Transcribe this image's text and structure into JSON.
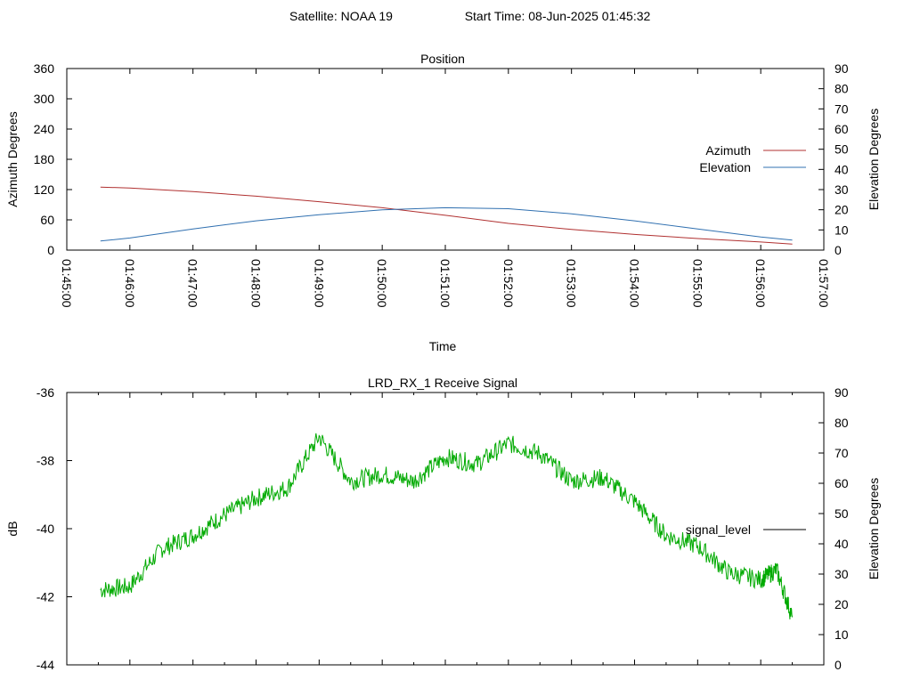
{
  "header": {
    "satellite": "Satellite: NOAA 19",
    "start_time": "Start Time: 08-Jun-2025 01:45:32"
  },
  "chart_data": [
    {
      "type": "line",
      "title": "Position",
      "xlabel": "Time",
      "ylabel": "Azimuth Degrees",
      "y2label": "Elevation Degrees",
      "xlim": [
        "01:45:00",
        "01:57:00"
      ],
      "x_ticks": [
        "01:45:00",
        "01:46:00",
        "01:47:00",
        "01:48:00",
        "01:49:00",
        "01:50:00",
        "01:51:00",
        "01:52:00",
        "01:53:00",
        "01:54:00",
        "01:55:00",
        "01:56:00",
        "01:57:00"
      ],
      "ylim": [
        0,
        360
      ],
      "y_ticks": [
        0,
        60,
        120,
        180,
        240,
        300,
        360
      ],
      "y2lim": [
        0,
        90
      ],
      "y2_ticks": [
        0,
        10,
        20,
        30,
        40,
        50,
        60,
        70,
        80,
        90
      ],
      "grid": false,
      "legend_position": "right",
      "series": [
        {
          "name": "Azimuth",
          "axis": "left",
          "color": "#b03030",
          "x": [
            "01:45:32",
            "01:46:00",
            "01:47:00",
            "01:48:00",
            "01:49:00",
            "01:50:00",
            "01:51:00",
            "01:52:00",
            "01:53:00",
            "01:54:00",
            "01:55:00",
            "01:56:00",
            "01:56:30"
          ],
          "y": [
            125,
            123,
            116,
            107,
            96,
            84,
            69,
            53,
            41,
            31,
            23,
            16,
            12
          ]
        },
        {
          "name": "Elevation",
          "axis": "right",
          "color": "#3070b0",
          "x": [
            "01:45:32",
            "01:46:00",
            "01:47:00",
            "01:48:00",
            "01:49:00",
            "01:50:00",
            "01:51:00",
            "01:52:00",
            "01:53:00",
            "01:54:00",
            "01:55:00",
            "01:56:00",
            "01:56:30"
          ],
          "y": [
            4.5,
            6,
            10.5,
            14.5,
            17.5,
            20,
            21,
            20.5,
            18,
            14.5,
            10.5,
            6.5,
            5
          ]
        }
      ]
    },
    {
      "type": "line",
      "title": "LRD_RX_1 Receive Signal",
      "ylabel": "dB",
      "y2label": "Elevation Degrees",
      "ylim": [
        -44,
        -36
      ],
      "y_ticks": [
        -44,
        -42,
        -40,
        -38,
        -36
      ],
      "y2lim": [
        0,
        90
      ],
      "y2_ticks": [
        0,
        10,
        20,
        30,
        40,
        50,
        60,
        70,
        80,
        90
      ],
      "xlim": [
        "01:45:00",
        "01:57:00"
      ],
      "grid": false,
      "legend_position": "right",
      "series": [
        {
          "name": "signal_level",
          "color": "#00aa00",
          "x": [
            "01:45:32",
            "01:46:00",
            "01:46:30",
            "01:47:00",
            "01:47:30",
            "01:48:00",
            "01:48:30",
            "01:49:00",
            "01:49:30",
            "01:50:00",
            "01:50:30",
            "01:51:00",
            "01:51:30",
            "01:52:00",
            "01:52:30",
            "01:53:00",
            "01:53:30",
            "01:54:00",
            "01:54:30",
            "01:55:00",
            "01:55:30",
            "01:56:00",
            "01:56:15",
            "01:56:30"
          ],
          "y": [
            -41.8,
            -41.7,
            -40.6,
            -40.2,
            -39.6,
            -39.1,
            -38.8,
            -37.3,
            -38.6,
            -38.4,
            -38.6,
            -37.9,
            -38.1,
            -37.5,
            -37.8,
            -38.6,
            -38.5,
            -39.2,
            -40.2,
            -40.5,
            -41.3,
            -41.5,
            -41.2,
            -42.6
          ]
        }
      ]
    }
  ]
}
